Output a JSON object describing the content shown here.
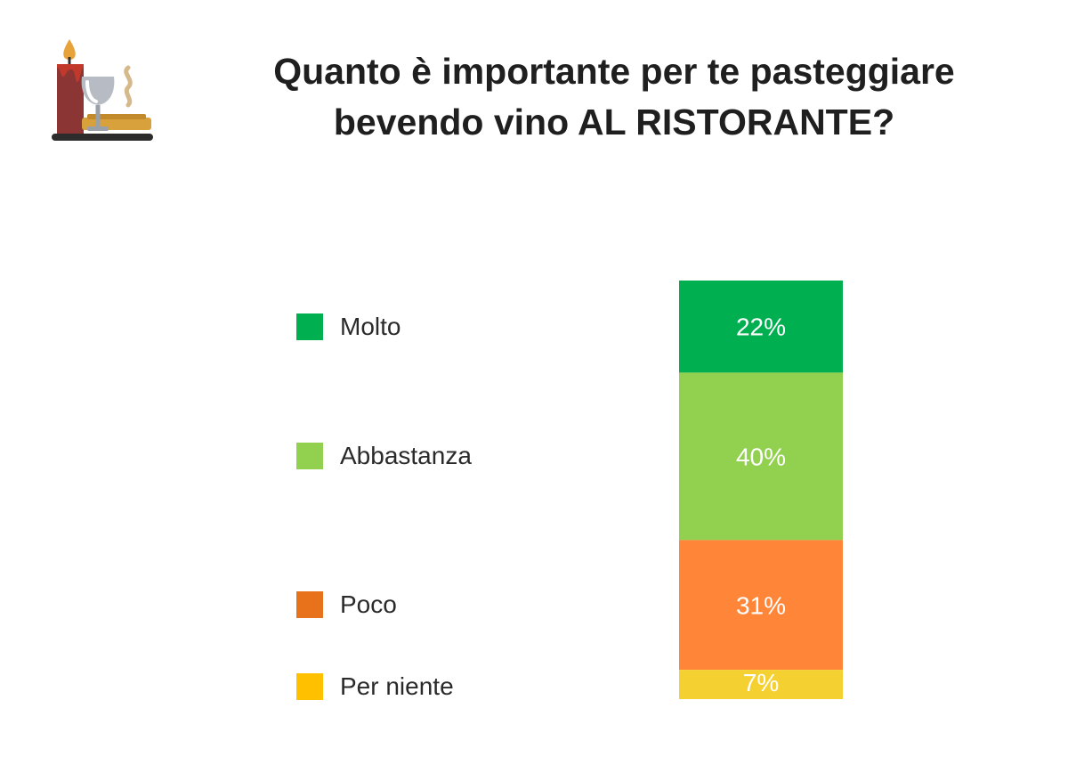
{
  "icon": "candle-wineglass-plate-icon",
  "chart_data": {
    "type": "bar",
    "stacked": true,
    "orientation": "vertical",
    "title": "Quanto è importante per te pasteggiare bevendo vino AL RISTORANTE?",
    "title_lines": [
      "Quanto è importante per te pasteggiare",
      "bevendo vino AL RISTORANTE?"
    ],
    "xlabel": "",
    "ylabel": "",
    "ylim": [
      0,
      100
    ],
    "grid": false,
    "legend_position": "left",
    "segments": [
      {
        "category": "Molto",
        "value": 22,
        "label": "22%",
        "bar_color": "#00b050",
        "legend_color": "#00b050"
      },
      {
        "category": "Abbastanza",
        "value": 40,
        "label": "40%",
        "bar_color": "#92d050",
        "legend_color": "#92d050"
      },
      {
        "category": "Poco",
        "value": 31,
        "label": "31%",
        "bar_color": "#ff8639",
        "legend_color": "#e8711c"
      },
      {
        "category": "Per niente",
        "value": 7,
        "label": "7%",
        "bar_color": "#f4d030",
        "legend_color": "#ffc000"
      }
    ]
  }
}
